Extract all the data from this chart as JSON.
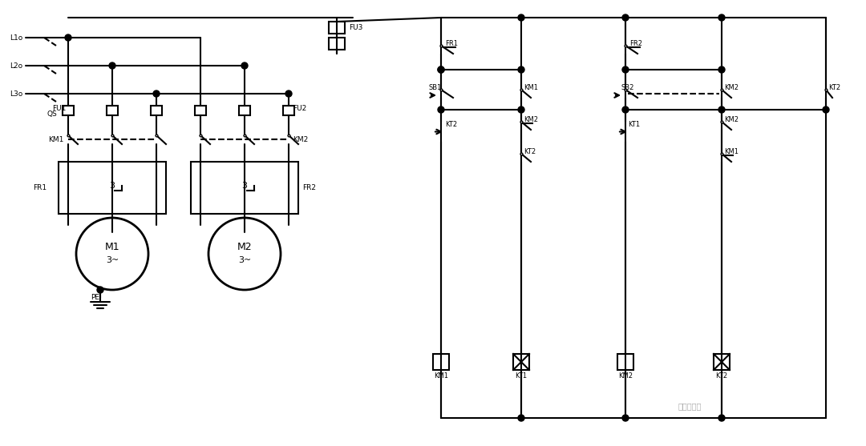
{
  "bg_color": "#ffffff",
  "line_color": "#000000",
  "line_width": 1.5,
  "title": "",
  "watermark": "电子技术控",
  "components": {
    "L1_label": "L1o",
    "L2_label": "L2o",
    "L3_label": "L3o",
    "QS_label": "QS",
    "FU1_label": "FU1",
    "FU2_label": "FU2",
    "FU3_label": "FU3",
    "KM1_label": "KM1",
    "KM2_label": "KM2",
    "FR1_label": "FR1",
    "FR2_label": "FR2",
    "M1_label": "M1",
    "M2_label": "M2",
    "PE_label": "PE",
    "SB1_label": "SB1",
    "SB2_label": "SB2",
    "KT1_label": "KT1",
    "KT2_label": "KT2"
  }
}
